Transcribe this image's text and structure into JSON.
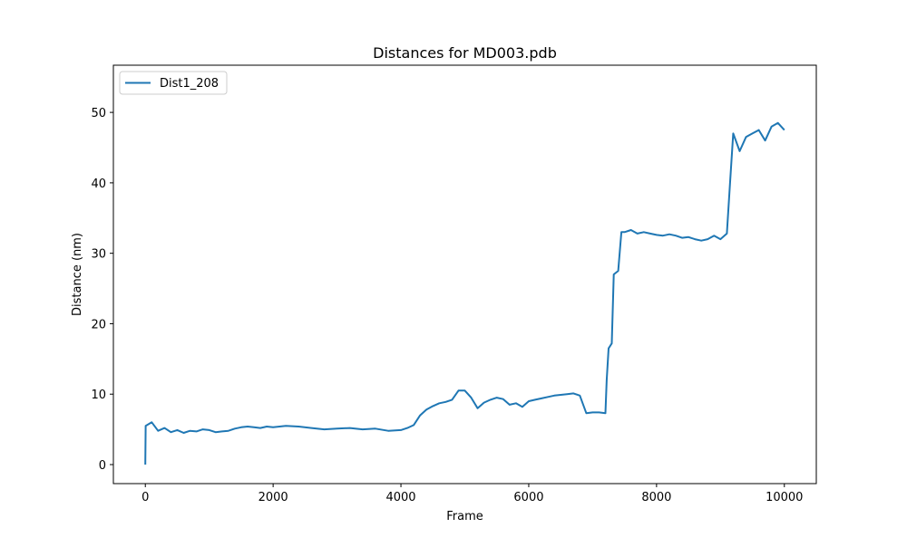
{
  "chart_data": {
    "type": "line",
    "title": "Distances for MD003.pdb",
    "xlabel": "Frame",
    "ylabel": "Distance (nm)",
    "xlim": [
      -500,
      10500
    ],
    "ylim": [
      -2.7,
      56.7
    ],
    "xticks": [
      0,
      2000,
      4000,
      6000,
      8000,
      10000
    ],
    "yticks": [
      0,
      10,
      20,
      30,
      40,
      50
    ],
    "grid": false,
    "legend_position": "top-left",
    "series": [
      {
        "name": "Dist1_208",
        "color": "#1f77b4",
        "points": [
          [
            0,
            0.0
          ],
          [
            5,
            5.5
          ],
          [
            100,
            6.0
          ],
          [
            200,
            4.8
          ],
          [
            300,
            5.2
          ],
          [
            400,
            4.6
          ],
          [
            500,
            4.9
          ],
          [
            600,
            4.5
          ],
          [
            700,
            4.8
          ],
          [
            800,
            4.7
          ],
          [
            900,
            5.0
          ],
          [
            1000,
            4.9
          ],
          [
            1100,
            4.6
          ],
          [
            1200,
            4.7
          ],
          [
            1300,
            4.8
          ],
          [
            1400,
            5.1
          ],
          [
            1500,
            5.3
          ],
          [
            1600,
            5.4
          ],
          [
            1700,
            5.3
          ],
          [
            1800,
            5.2
          ],
          [
            1900,
            5.4
          ],
          [
            2000,
            5.3
          ],
          [
            2200,
            5.5
          ],
          [
            2400,
            5.4
          ],
          [
            2600,
            5.2
          ],
          [
            2800,
            5.0
          ],
          [
            3000,
            5.1
          ],
          [
            3200,
            5.2
          ],
          [
            3400,
            5.0
          ],
          [
            3600,
            5.1
          ],
          [
            3800,
            4.8
          ],
          [
            4000,
            4.9
          ],
          [
            4100,
            5.2
          ],
          [
            4200,
            5.6
          ],
          [
            4300,
            7.0
          ],
          [
            4400,
            7.8
          ],
          [
            4500,
            8.3
          ],
          [
            4600,
            8.7
          ],
          [
            4700,
            8.9
          ],
          [
            4800,
            9.2
          ],
          [
            4900,
            10.5
          ],
          [
            5000,
            10.5
          ],
          [
            5100,
            9.5
          ],
          [
            5200,
            8.0
          ],
          [
            5300,
            8.8
          ],
          [
            5400,
            9.2
          ],
          [
            5500,
            9.5
          ],
          [
            5600,
            9.3
          ],
          [
            5700,
            8.5
          ],
          [
            5800,
            8.7
          ],
          [
            5900,
            8.2
          ],
          [
            6000,
            9.0
          ],
          [
            6100,
            9.2
          ],
          [
            6200,
            9.4
          ],
          [
            6300,
            9.6
          ],
          [
            6400,
            9.8
          ],
          [
            6500,
            9.9
          ],
          [
            6600,
            10.0
          ],
          [
            6700,
            10.1
          ],
          [
            6800,
            9.8
          ],
          [
            6900,
            7.3
          ],
          [
            7000,
            7.4
          ],
          [
            7100,
            7.4
          ],
          [
            7200,
            7.3
          ],
          [
            7220,
            12.0
          ],
          [
            7250,
            16.5
          ],
          [
            7300,
            17.2
          ],
          [
            7330,
            27.0
          ],
          [
            7400,
            27.5
          ],
          [
            7450,
            33.0
          ],
          [
            7500,
            33.0
          ],
          [
            7600,
            33.3
          ],
          [
            7700,
            32.8
          ],
          [
            7800,
            33.0
          ],
          [
            7900,
            32.8
          ],
          [
            8000,
            32.6
          ],
          [
            8100,
            32.5
          ],
          [
            8200,
            32.7
          ],
          [
            8300,
            32.5
          ],
          [
            8400,
            32.2
          ],
          [
            8500,
            32.3
          ],
          [
            8600,
            32.0
          ],
          [
            8700,
            31.8
          ],
          [
            8800,
            32.0
          ],
          [
            8900,
            32.5
          ],
          [
            9000,
            32.0
          ],
          [
            9100,
            32.8
          ],
          [
            9150,
            40.0
          ],
          [
            9200,
            47.0
          ],
          [
            9300,
            44.5
          ],
          [
            9400,
            46.5
          ],
          [
            9500,
            47.0
          ],
          [
            9600,
            47.5
          ],
          [
            9700,
            46.0
          ],
          [
            9800,
            48.0
          ],
          [
            9900,
            48.5
          ],
          [
            10000,
            47.5
          ]
        ]
      }
    ]
  }
}
